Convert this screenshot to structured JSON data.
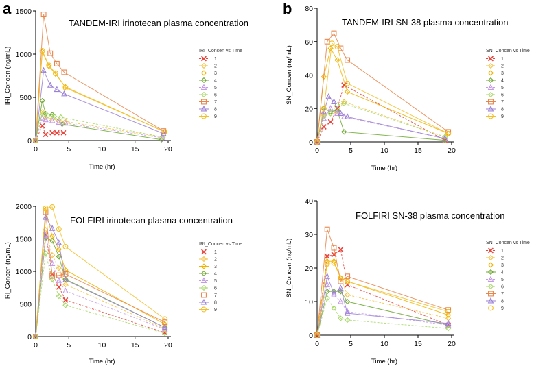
{
  "panel_labels": [
    "a",
    "b"
  ],
  "series_colors": [
    "#e8453c",
    "#f5c242",
    "#f0b400",
    "#6fa832",
    "#c59be8",
    "#a8d86a",
    "#e8854a",
    "#9a80d6",
    "#f2c02a"
  ],
  "chart_data": [
    {
      "type": "line",
      "panel": "a",
      "title": "TANDEM-IRI irinotecan plasma concentration",
      "xlabel": "Time (hr)",
      "ylabel": "IRI_Concen (ng/mL)",
      "xlim": [
        0,
        20
      ],
      "ylim": [
        0,
        1500
      ],
      "xticks": [
        0,
        5,
        10,
        15,
        20
      ],
      "yticks": [
        0,
        500,
        1000,
        1500
      ],
      "legend_title": "IRI_Concen vs Time",
      "series": [
        {
          "name": "1",
          "x": [
            0,
            1,
            1.5,
            2.5,
            3.2,
            4.2
          ],
          "y": [
            0,
            170,
            70,
            90,
            90,
            90
          ]
        },
        {
          "name": "2",
          "x": [
            0,
            1,
            1.5,
            2.5,
            3.5,
            4.5,
            19.2
          ],
          "y": [
            0,
            330,
            270,
            250,
            230,
            220,
            40
          ]
        },
        {
          "name": "3",
          "x": [
            0,
            1,
            2,
            3,
            4.5,
            19.5
          ],
          "y": [
            0,
            1030,
            860,
            770,
            620,
            100
          ]
        },
        {
          "name": "4",
          "x": [
            0,
            1,
            1.5,
            2.5,
            4,
            19
          ],
          "y": [
            0,
            460,
            310,
            300,
            190,
            10
          ]
        },
        {
          "name": "5",
          "x": [
            0,
            1,
            1.5,
            2.5,
            3.5,
            4.5,
            19.2
          ],
          "y": [
            0,
            260,
            240,
            230,
            210,
            200,
            30
          ]
        },
        {
          "name": "6",
          "x": [
            0,
            1,
            1.8,
            2.8,
            3.8,
            19.2
          ],
          "y": [
            0,
            310,
            290,
            280,
            270,
            40
          ]
        },
        {
          "name": "7",
          "x": [
            0,
            1.2,
            2.2,
            3.2,
            4.3,
            19.3
          ],
          "y": [
            0,
            1460,
            1010,
            890,
            790,
            110
          ]
        },
        {
          "name": "8",
          "x": [
            0,
            1.2,
            2.2,
            3.2,
            4.3,
            19.3
          ],
          "y": [
            0,
            810,
            640,
            590,
            540,
            80
          ]
        },
        {
          "name": "9",
          "x": [
            0,
            1,
            2,
            3,
            4.5,
            19.5
          ],
          "y": [
            0,
            1040,
            870,
            780,
            610,
            100
          ]
        }
      ]
    },
    {
      "type": "line",
      "panel": "b",
      "title": "TANDEM-IRI SN-38 plasma concentration",
      "xlabel": "Time (hr)",
      "ylabel": "SN_Concen (ng/mL)",
      "xlim": [
        0,
        20
      ],
      "ylim": [
        0,
        80
      ],
      "xticks": [
        0,
        5,
        10,
        15,
        20
      ],
      "yticks": [
        0,
        20,
        40,
        60,
        80
      ],
      "legend_title": "SN_Concen vs Time",
      "series": [
        {
          "name": "1",
          "x": [
            0,
            1,
            2,
            3,
            4,
            19
          ],
          "y": [
            0,
            9,
            12,
            20,
            34,
            1
          ]
        },
        {
          "name": "2",
          "x": [
            0,
            1,
            2,
            3,
            4,
            19
          ],
          "y": [
            0,
            16,
            17,
            18,
            24,
            3
          ]
        },
        {
          "name": "3",
          "x": [
            0,
            1,
            2,
            3,
            4.5,
            19.5
          ],
          "y": [
            0,
            39,
            56,
            49,
            30,
            5
          ]
        },
        {
          "name": "4",
          "x": [
            0,
            1,
            2,
            3,
            4,
            19
          ],
          "y": [
            0,
            20,
            18,
            19,
            6,
            1
          ]
        },
        {
          "name": "5",
          "x": [
            0,
            1,
            2,
            3,
            4,
            19
          ],
          "y": [
            0,
            14,
            20,
            17,
            15,
            2
          ]
        },
        {
          "name": "6",
          "x": [
            0,
            1,
            2,
            3,
            4,
            19
          ],
          "y": [
            0,
            15,
            17,
            22,
            23,
            3
          ]
        },
        {
          "name": "7",
          "x": [
            0,
            1.5,
            2.5,
            3.5,
            4.5,
            19.5
          ],
          "y": [
            0,
            60,
            65,
            56,
            49,
            6
          ]
        },
        {
          "name": "8",
          "x": [
            0,
            1,
            1.7,
            2.5,
            3.5,
            4.5,
            19
          ],
          "y": [
            0,
            18,
            27,
            24,
            17,
            15,
            2
          ]
        },
        {
          "name": "9",
          "x": [
            0,
            1,
            2.2,
            3,
            4.5,
            19.5
          ],
          "y": [
            0,
            20,
            59,
            57,
            35,
            5
          ]
        }
      ]
    },
    {
      "type": "line",
      "panel": "a",
      "title": "FOLFIRI irinotecan plasma concentration",
      "xlabel": "Time (hr)",
      "ylabel": "IRI_Concen (ng/mL)",
      "xlim": [
        0,
        20
      ],
      "ylim": [
        0,
        2000
      ],
      "xticks": [
        0,
        5,
        10,
        15,
        20
      ],
      "yticks": [
        0,
        500,
        1000,
        1500,
        2000
      ],
      "legend_title": "IRI_Concen vs Time",
      "series": [
        {
          "name": "1",
          "x": [
            0,
            1.5,
            2.5,
            3.5,
            4.5,
            19.5
          ],
          "y": [
            0,
            1560,
            960,
            760,
            560,
            60
          ]
        },
        {
          "name": "2",
          "x": [
            0,
            1.5,
            2.5,
            3.5,
            4.5,
            19.5
          ],
          "y": [
            0,
            1640,
            1250,
            1050,
            800,
            120
          ]
        },
        {
          "name": "3",
          "x": [
            0,
            1.5,
            2.5,
            3.5,
            4.5,
            19.5
          ],
          "y": [
            0,
            1950,
            1540,
            1340,
            1020,
            190
          ]
        },
        {
          "name": "4",
          "x": [
            0,
            1.5,
            2.5,
            3.5,
            4.5,
            19.5
          ],
          "y": [
            0,
            1520,
            1470,
            1230,
            880,
            140
          ]
        },
        {
          "name": "5",
          "x": [
            0,
            1.5,
            2.5,
            3.5,
            4.5,
            19.5
          ],
          "y": [
            0,
            1550,
            1120,
            860,
            700,
            110
          ]
        },
        {
          "name": "6",
          "x": [
            0,
            1.5,
            2.5,
            3.5,
            4.5,
            19.5
          ],
          "y": [
            0,
            1280,
            880,
            620,
            480,
            50
          ]
        },
        {
          "name": "7",
          "x": [
            0,
            1.5,
            2.5,
            3.5,
            4.5,
            19.5
          ],
          "y": [
            0,
            1910,
            930,
            940,
            960,
            220
          ]
        },
        {
          "name": "8",
          "x": [
            0,
            1.5,
            2.5,
            3.5,
            4.5,
            19.5
          ],
          "y": [
            0,
            1830,
            1660,
            1440,
            870,
            140
          ]
        },
        {
          "name": "9",
          "x": [
            0,
            1.5,
            2.5,
            3.5,
            4.5,
            19.5
          ],
          "y": [
            0,
            1970,
            1990,
            1650,
            1380,
            270
          ]
        }
      ]
    },
    {
      "type": "line",
      "panel": "b",
      "title": "FOLFIRI SN-38 plasma concentration",
      "xlabel": "Time (hr)",
      "ylabel": "SN_Concen (ng/mL)",
      "xlim": [
        0,
        20
      ],
      "ylim": [
        0,
        40
      ],
      "xticks": [
        0,
        5,
        10,
        15,
        20
      ],
      "yticks": [
        0,
        10,
        20,
        30,
        40
      ],
      "legend_title": "SN_Concen vs Time",
      "series": [
        {
          "name": "1",
          "x": [
            0,
            1.5,
            2.5,
            3.5,
            4.5,
            19.5
          ],
          "y": [
            0,
            23.5,
            24,
            25.5,
            15,
            3
          ]
        },
        {
          "name": "2",
          "x": [
            0,
            1.5,
            2.5,
            3.5,
            4.5,
            19.5
          ],
          "y": [
            0,
            21,
            22,
            17,
            12,
            5
          ]
        },
        {
          "name": "3",
          "x": [
            0,
            1.5,
            2.5,
            3.5,
            4.5,
            19.5
          ],
          "y": [
            0,
            22,
            22,
            17,
            16,
            6
          ]
        },
        {
          "name": "4",
          "x": [
            0,
            1.5,
            2.5,
            3.5,
            4.5,
            19.5
          ],
          "y": [
            0,
            13,
            13,
            13,
            10,
            3
          ]
        },
        {
          "name": "5",
          "x": [
            0,
            1.5,
            2.5,
            3.5,
            4.5,
            19.5
          ],
          "y": [
            0,
            15,
            12,
            10,
            7,
            3
          ]
        },
        {
          "name": "6",
          "x": [
            0,
            1.5,
            2.5,
            3.5,
            4.5,
            19.5
          ],
          "y": [
            0,
            11,
            8,
            5,
            4.5,
            2
          ]
        },
        {
          "name": "7",
          "x": [
            0,
            1.5,
            2.5,
            3.5,
            4.5,
            19.5
          ],
          "y": [
            0,
            31.5,
            26,
            16,
            17.5,
            7.5
          ]
        },
        {
          "name": "8",
          "x": [
            0,
            1.5,
            2.5,
            3.5,
            4.5,
            19.5
          ],
          "y": [
            0,
            17.5,
            12.5,
            14,
            6.5,
            3.5
          ]
        },
        {
          "name": "9",
          "x": [
            0,
            1.5,
            2.5,
            3.5,
            4.5,
            19.5
          ],
          "y": [
            0,
            21.5,
            21.5,
            17,
            16,
            7
          ]
        }
      ]
    }
  ]
}
